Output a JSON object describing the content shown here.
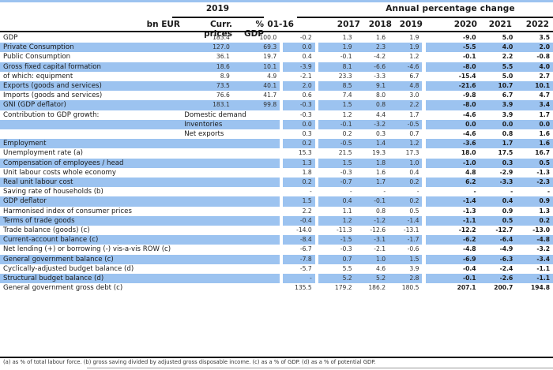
{
  "header": {
    "year_group": "2019",
    "annual_group": "Annual percentage change",
    "columns": [
      "bn EUR",
      "Curr. prices",
      "% GDP",
      "01-16",
      "2017",
      "2018",
      "2019",
      "2020",
      "2021",
      "2022"
    ]
  },
  "colors": {
    "row_highlight": "#9cc3f0",
    "rule": "#111111"
  },
  "rows": [
    {
      "label": "GDP",
      "sub": "",
      "cp": "183.4",
      "gdp": "100.0",
      "v": [
        "-0.2",
        "1.3",
        "1.6",
        "1.9",
        "-9.0",
        "5.0",
        "3.5"
      ]
    },
    {
      "label": "Private Consumption",
      "sub": "",
      "cp": "127.0",
      "gdp": "69.3",
      "v": [
        "0.0",
        "1.9",
        "2.3",
        "1.9",
        "-5.5",
        "4.0",
        "2.0"
      ]
    },
    {
      "label": "Public Consumption",
      "sub": "",
      "cp": "36.1",
      "gdp": "19.7",
      "v": [
        "0.4",
        "-0.1",
        "-4.2",
        "1.2",
        "-0.1",
        "2.2",
        "-0.8"
      ]
    },
    {
      "label": "Gross fixed capital formation",
      "sub": "",
      "cp": "18.6",
      "gdp": "10.1",
      "v": [
        "-3.9",
        "8.1",
        "-6.6",
        "-4.6",
        "-8.0",
        "5.5",
        "4.0"
      ]
    },
    {
      "label": "of which: equipment",
      "sub": "",
      "cp": "8.9",
      "gdp": "4.9",
      "v": [
        "-2.1",
        "23.3",
        "-3.3",
        "6.7",
        "-15.4",
        "5.0",
        "2.7"
      ]
    },
    {
      "label": "Exports (goods and services)",
      "sub": "",
      "cp": "73.5",
      "gdp": "40.1",
      "v": [
        "2.0",
        "8.5",
        "9.1",
        "4.8",
        "-21.6",
        "10.7",
        "10.1"
      ]
    },
    {
      "label": "Imports (goods and services)",
      "sub": "",
      "cp": "76.6",
      "gdp": "41.7",
      "v": [
        "0.6",
        "7.4",
        "8.0",
        "3.0",
        "-9.8",
        "6.7",
        "4.7"
      ]
    },
    {
      "label": "GNI (GDP deflator)",
      "sub": "",
      "cp": "183.1",
      "gdp": "99.8",
      "v": [
        "-0.3",
        "1.5",
        "0.8",
        "2.2",
        "-8.0",
        "3.9",
        "3.4"
      ]
    },
    {
      "label": "Contribution to GDP growth:",
      "sub": "Domestic demand",
      "cp": "",
      "gdp": "",
      "v": [
        "-0.3",
        "1.2",
        "4.4",
        "1.7",
        "-4.6",
        "3.9",
        "1.7"
      ]
    },
    {
      "label": "",
      "sub": "Inventories",
      "cp": "",
      "gdp": "",
      "v": [
        "0.0",
        "-0.1",
        "-3.2",
        "-0.5",
        "0.0",
        "0.0",
        "0.0"
      ]
    },
    {
      "label": "",
      "sub": "Net exports",
      "cp": "",
      "gdp": "",
      "v": [
        "0.3",
        "0.2",
        "0.3",
        "0.7",
        "-4.6",
        "0.8",
        "1.6"
      ]
    },
    {
      "label": "Employment",
      "sub": "",
      "cp": "",
      "gdp": "",
      "v": [
        "0.2",
        "-0.5",
        "1.4",
        "1.2",
        "-3.6",
        "1.7",
        "1.6"
      ]
    },
    {
      "label": "Unemployment rate (a)",
      "sub": "",
      "cp": "",
      "gdp": "",
      "v": [
        "15.3",
        "21.5",
        "19.3",
        "17.3",
        "18.0",
        "17.5",
        "16.7"
      ]
    },
    {
      "label": "Compensation of employees / head",
      "sub": "",
      "cp": "",
      "gdp": "",
      "v": [
        "1.3",
        "1.5",
        "1.8",
        "1.0",
        "-1.0",
        "0.3",
        "0.5"
      ]
    },
    {
      "label": "Unit labour costs whole economy",
      "sub": "",
      "cp": "",
      "gdp": "",
      "v": [
        "1.8",
        "-0.3",
        "1.6",
        "0.4",
        "4.8",
        "-2.9",
        "-1.3"
      ]
    },
    {
      "label": "Real unit labour cost",
      "sub": "",
      "cp": "",
      "gdp": "",
      "v": [
        "0.2",
        "-0.7",
        "1.7",
        "0.2",
        "6.2",
        "-3.3",
        "-2.3"
      ]
    },
    {
      "label": "Saving rate of households (b)",
      "sub": "",
      "cp": "",
      "gdp": "",
      "v": [
        "-",
        "-",
        "-",
        "-",
        "-",
        "-",
        "-"
      ]
    },
    {
      "label": "GDP deflator",
      "sub": "",
      "cp": "",
      "gdp": "",
      "v": [
        "1.5",
        "0.4",
        "-0.1",
        "0.2",
        "-1.4",
        "0.4",
        "0.9"
      ]
    },
    {
      "label": "Harmonised index of consumer prices",
      "sub": "",
      "cp": "",
      "gdp": "",
      "v": [
        "2.2",
        "1.1",
        "0.8",
        "0.5",
        "-1.3",
        "0.9",
        "1.3"
      ]
    },
    {
      "label": "Terms of trade goods",
      "sub": "",
      "cp": "",
      "gdp": "",
      "v": [
        "-0.4",
        "1.2",
        "-1.2",
        "-1.4",
        "-1.1",
        "0.5",
        "0.2"
      ]
    },
    {
      "label": "Trade balance (goods) (c)",
      "sub": "",
      "cp": "",
      "gdp": "",
      "v": [
        "-14.0",
        "-11.3",
        "-12.6",
        "-13.1",
        "-12.2",
        "-12.7",
        "-13.0"
      ]
    },
    {
      "label": "Current-account balance (c)",
      "sub": "",
      "cp": "",
      "gdp": "",
      "v": [
        "-8.4",
        "-1.5",
        "-3.1",
        "-1.7",
        "-6.2",
        "-6.4",
        "-4.8"
      ]
    },
    {
      "label": "Net lending (+) or borrowing (-) vis-a-vis ROW (c)",
      "sub": "",
      "cp": "",
      "gdp": "",
      "v": [
        "-6.7",
        "-0.3",
        "-2.1",
        "-0.6",
        "-4.8",
        "-4.9",
        "-3.2"
      ]
    },
    {
      "label": "General government balance (c)",
      "sub": "",
      "cp": "",
      "gdp": "",
      "v": [
        "-7.8",
        "0.7",
        "1.0",
        "1.5",
        "-6.9",
        "-6.3",
        "-3.4"
      ]
    },
    {
      "label": "Cyclically-adjusted budget balance (d)",
      "sub": "",
      "cp": "",
      "gdp": "",
      "v": [
        "-5.7",
        "5.5",
        "4.6",
        "3.9",
        "-0.4",
        "-2.4",
        "-1.1"
      ]
    },
    {
      "label": "Structural budget balance (d)",
      "sub": "",
      "cp": "",
      "gdp": "",
      "v": [
        "-",
        "5.2",
        "5.2",
        "2.8",
        "-0.1",
        "-2.6",
        "-1.1"
      ]
    },
    {
      "label": "General government gross debt (c)",
      "sub": "",
      "cp": "",
      "gdp": "",
      "v": [
        "135.5",
        "179.2",
        "186.2",
        "180.5",
        "207.1",
        "200.7",
        "194.8"
      ]
    }
  ],
  "footnote": "(a) as % of total labour force. (b) gross saving divided by adjusted gross disposable income.  (c) as a % of  GDP. (d) as a % of  potential GDP."
}
